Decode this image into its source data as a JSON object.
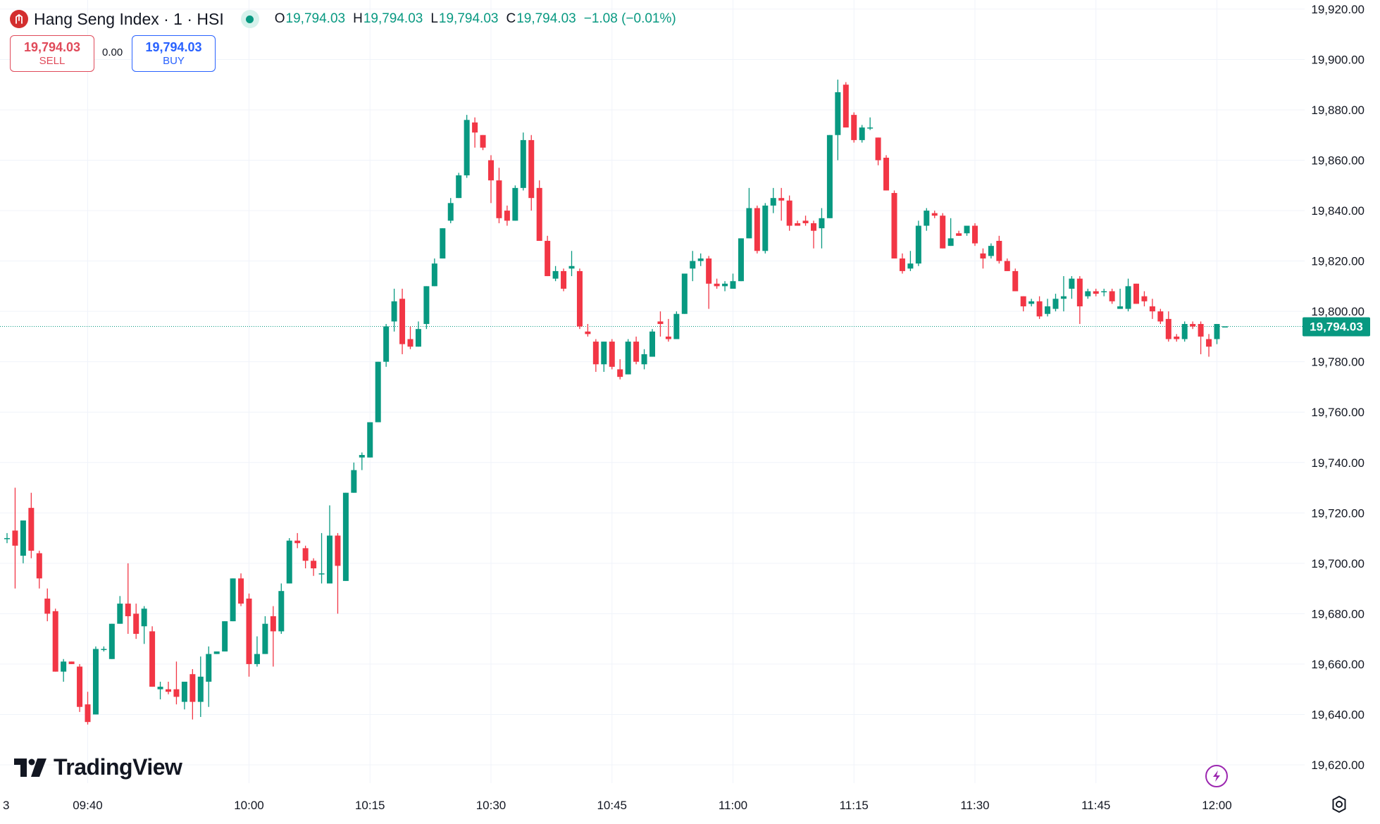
{
  "header": {
    "symbol_title": "Hang Seng Index · 1 · HSI",
    "ohlc": {
      "o_label": "O",
      "o_value": "19,794.03",
      "h_label": "H",
      "h_value": "19,794.03",
      "l_label": "L",
      "l_value": "19,794.03",
      "c_label": "C",
      "c_value": "19,794.03",
      "change": "−1.08 (−0.01%)"
    }
  },
  "trade": {
    "sell_price": "19,794.03",
    "sell_label": "SELL",
    "spread": "0.00",
    "buy_price": "19,794.03",
    "buy_label": "BUY"
  },
  "branding": {
    "logo_text": "TradingView"
  },
  "icons": {
    "symbol": "hsi-logo-icon",
    "live": "market-open-icon",
    "flash": "lightning-icon",
    "settings": "settings-icon"
  },
  "colors": {
    "up": "#089981",
    "down": "#f23645",
    "grid": "#f0f3fa",
    "last_price": "#089981"
  },
  "chart_data": {
    "type": "candlestick",
    "interval": "1 minute",
    "y_ticks": [
      19620,
      19640,
      19660,
      19680,
      19700,
      19720,
      19740,
      19760,
      19780,
      19800,
      19820,
      19840,
      19860,
      19880,
      19900,
      19920
    ],
    "y_tick_labels": [
      "19,620.00",
      "19,640.00",
      "19,660.00",
      "19,680.00",
      "19,700.00",
      "19,720.00",
      "19,740.00",
      "19,760.00",
      "19,780.00",
      "19,800.00",
      "19,820.00",
      "19,840.00",
      "19,860.00",
      "19,880.00",
      "19,900.00",
      "19,920.00"
    ],
    "x_tick_labels": [
      {
        "label": "3",
        "minute": -7
      },
      {
        "label": "09:40",
        "minute": 10
      },
      {
        "label": "10:00",
        "minute": 30
      },
      {
        "label": "10:15",
        "minute": 45
      },
      {
        "label": "10:30",
        "minute": 60
      },
      {
        "label": "10:45",
        "minute": 75
      },
      {
        "label": "11:00",
        "minute": 90
      },
      {
        "label": "11:15",
        "minute": 105
      },
      {
        "label": "11:30",
        "minute": 120
      },
      {
        "label": "11:45",
        "minute": 135
      },
      {
        "label": "12:00",
        "minute": 150
      }
    ],
    "last_price": 19794.03,
    "last_price_label": "19,794.03",
    "candles": [
      {
        "o": 19710,
        "h": 19712,
        "l": 19708,
        "c": 19710
      },
      {
        "o": 19713,
        "h": 19730,
        "l": 19690,
        "c": 19707
      },
      {
        "o": 19703,
        "h": 19717,
        "l": 19700,
        "c": 19717
      },
      {
        "o": 19722,
        "h": 19728,
        "l": 19702,
        "c": 19705
      },
      {
        "o": 19704,
        "h": 19705,
        "l": 19690,
        "c": 19694
      },
      {
        "o": 19686,
        "h": 19690,
        "l": 19677,
        "c": 19680
      },
      {
        "o": 19681,
        "h": 19682,
        "l": 19657,
        "c": 19657
      },
      {
        "o": 19657,
        "h": 19662,
        "l": 19653,
        "c": 19661
      },
      {
        "o": 19661,
        "h": 19661,
        "l": 19660,
        "c": 19660
      },
      {
        "o": 19659,
        "h": 19660,
        "l": 19641,
        "c": 19643
      },
      {
        "o": 19644,
        "h": 19649,
        "l": 19636,
        "c": 19637
      },
      {
        "o": 19640,
        "h": 19667,
        "l": 19640,
        "c": 19666
      },
      {
        "o": 19666,
        "h": 19667,
        "l": 19665,
        "c": 19666
      },
      {
        "o": 19662,
        "h": 19676,
        "l": 19662,
        "c": 19676
      },
      {
        "o": 19676,
        "h": 19687,
        "l": 19676,
        "c": 19684
      },
      {
        "o": 19684,
        "h": 19700,
        "l": 19672,
        "c": 19679
      },
      {
        "o": 19680,
        "h": 19684,
        "l": 19670,
        "c": 19672
      },
      {
        "o": 19675,
        "h": 19683,
        "l": 19668,
        "c": 19682
      },
      {
        "o": 19673,
        "h": 19675,
        "l": 19651,
        "c": 19651
      },
      {
        "o": 19650,
        "h": 19653,
        "l": 19646,
        "c": 19651
      },
      {
        "o": 19650,
        "h": 19653,
        "l": 19648,
        "c": 19649
      },
      {
        "o": 19650,
        "h": 19661,
        "l": 19644,
        "c": 19647
      },
      {
        "o": 19645,
        "h": 19652,
        "l": 19642,
        "c": 19653
      },
      {
        "o": 19656,
        "h": 19658,
        "l": 19638,
        "c": 19645
      },
      {
        "o": 19645,
        "h": 19663,
        "l": 19639,
        "c": 19655
      },
      {
        "o": 19653,
        "h": 19667,
        "l": 19643,
        "c": 19664
      },
      {
        "o": 19664,
        "h": 19665,
        "l": 19664,
        "c": 19665
      },
      {
        "o": 19665,
        "h": 19677,
        "l": 19665,
        "c": 19677
      },
      {
        "o": 19677,
        "h": 19694,
        "l": 19677,
        "c": 19694
      },
      {
        "o": 19694,
        "h": 19696,
        "l": 19683,
        "c": 19684
      },
      {
        "o": 19686,
        "h": 19688,
        "l": 19655,
        "c": 19660
      },
      {
        "o": 19660,
        "h": 19671,
        "l": 19659,
        "c": 19664
      },
      {
        "o": 19664,
        "h": 19679,
        "l": 19664,
        "c": 19676
      },
      {
        "o": 19679,
        "h": 19683,
        "l": 19659,
        "c": 19673
      },
      {
        "o": 19673,
        "h": 19692,
        "l": 19672,
        "c": 19689
      },
      {
        "o": 19692,
        "h": 19710,
        "l": 19692,
        "c": 19709
      },
      {
        "o": 19709,
        "h": 19712,
        "l": 19706,
        "c": 19708
      },
      {
        "o": 19706,
        "h": 19707,
        "l": 19698,
        "c": 19701
      },
      {
        "o": 19701,
        "h": 19702,
        "l": 19695,
        "c": 19698
      },
      {
        "o": 19696,
        "h": 19712,
        "l": 19692,
        "c": 19696
      },
      {
        "o": 19692,
        "h": 19723,
        "l": 19692,
        "c": 19711
      },
      {
        "o": 19711,
        "h": 19712,
        "l": 19680,
        "c": 19699
      },
      {
        "o": 19693,
        "h": 19728,
        "l": 19693,
        "c": 19728
      },
      {
        "o": 19728,
        "h": 19740,
        "l": 19728,
        "c": 19737
      },
      {
        "o": 19742,
        "h": 19744,
        "l": 19737,
        "c": 19743
      },
      {
        "o": 19742,
        "h": 19756,
        "l": 19742,
        "c": 19756
      },
      {
        "o": 19756,
        "h": 19780,
        "l": 19756,
        "c": 19780
      },
      {
        "o": 19780,
        "h": 19795,
        "l": 19778,
        "c": 19794
      },
      {
        "o": 19796,
        "h": 19809,
        "l": 19792,
        "c": 19804
      },
      {
        "o": 19805,
        "h": 19809,
        "l": 19783,
        "c": 19787
      },
      {
        "o": 19789,
        "h": 19794,
        "l": 19785,
        "c": 19786
      },
      {
        "o": 19786,
        "h": 19796,
        "l": 19786,
        "c": 19793
      },
      {
        "o": 19795,
        "h": 19810,
        "l": 19793,
        "c": 19810
      },
      {
        "o": 19810,
        "h": 19821,
        "l": 19810,
        "c": 19819
      },
      {
        "o": 19821,
        "h": 19833,
        "l": 19821,
        "c": 19833
      },
      {
        "o": 19836,
        "h": 19845,
        "l": 19835,
        "c": 19843
      },
      {
        "o": 19845,
        "h": 19855,
        "l": 19845,
        "c": 19854
      },
      {
        "o": 19854,
        "h": 19878,
        "l": 19853,
        "c": 19876
      },
      {
        "o": 19875,
        "h": 19877,
        "l": 19865,
        "c": 19871
      },
      {
        "o": 19870,
        "h": 19870,
        "l": 19864,
        "c": 19865
      },
      {
        "o": 19860,
        "h": 19862,
        "l": 19843,
        "c": 19852
      },
      {
        "o": 19852,
        "h": 19857,
        "l": 19835,
        "c": 19837
      },
      {
        "o": 19840,
        "h": 19842,
        "l": 19834,
        "c": 19836
      },
      {
        "o": 19836,
        "h": 19850,
        "l": 19836,
        "c": 19849
      },
      {
        "o": 19849,
        "h": 19871,
        "l": 19848,
        "c": 19868
      },
      {
        "o": 19868,
        "h": 19870,
        "l": 19840,
        "c": 19845
      },
      {
        "o": 19849,
        "h": 19852,
        "l": 19828,
        "c": 19828
      },
      {
        "o": 19828,
        "h": 19830,
        "l": 19814,
        "c": 19814
      },
      {
        "o": 19813,
        "h": 19818,
        "l": 19812,
        "c": 19816
      },
      {
        "o": 19816,
        "h": 19817,
        "l": 19808,
        "c": 19809
      },
      {
        "o": 19817,
        "h": 19824,
        "l": 19814,
        "c": 19818
      },
      {
        "o": 19816,
        "h": 19817,
        "l": 19793,
        "c": 19794
      },
      {
        "o": 19792,
        "h": 19795,
        "l": 19790,
        "c": 19791
      },
      {
        "o": 19788,
        "h": 19789,
        "l": 19776,
        "c": 19779
      },
      {
        "o": 19779,
        "h": 19788,
        "l": 19776,
        "c": 19788
      },
      {
        "o": 19788,
        "h": 19789,
        "l": 19777,
        "c": 19778
      },
      {
        "o": 19777,
        "h": 19781,
        "l": 19773,
        "c": 19774
      },
      {
        "o": 19775,
        "h": 19789,
        "l": 19775,
        "c": 19788
      },
      {
        "o": 19788,
        "h": 19790,
        "l": 19779,
        "c": 19780
      },
      {
        "o": 19779,
        "h": 19785,
        "l": 19777,
        "c": 19783
      },
      {
        "o": 19782,
        "h": 19793,
        "l": 19782,
        "c": 19792
      },
      {
        "o": 19796,
        "h": 19800,
        "l": 19790,
        "c": 19795
      },
      {
        "o": 19790,
        "h": 19797,
        "l": 19788,
        "c": 19789
      },
      {
        "o": 19789,
        "h": 19800,
        "l": 19789,
        "c": 19799
      },
      {
        "o": 19799,
        "h": 19814,
        "l": 19799,
        "c": 19815
      },
      {
        "o": 19817,
        "h": 19824,
        "l": 19812,
        "c": 19820
      },
      {
        "o": 19820,
        "h": 19823,
        "l": 19818,
        "c": 19821
      },
      {
        "o": 19821,
        "h": 19822,
        "l": 19801,
        "c": 19811
      },
      {
        "o": 19811,
        "h": 19813,
        "l": 19809,
        "c": 19810
      },
      {
        "o": 19810,
        "h": 19812,
        "l": 19808,
        "c": 19811
      },
      {
        "o": 19809,
        "h": 19815,
        "l": 19809,
        "c": 19812
      },
      {
        "o": 19812,
        "h": 19829,
        "l": 19812,
        "c": 19829
      },
      {
        "o": 19829,
        "h": 19849,
        "l": 19829,
        "c": 19841
      },
      {
        "o": 19841,
        "h": 19842,
        "l": 19823,
        "c": 19824
      },
      {
        "o": 19824,
        "h": 19843,
        "l": 19823,
        "c": 19842
      },
      {
        "o": 19842,
        "h": 19849,
        "l": 19839,
        "c": 19845
      },
      {
        "o": 19845,
        "h": 19849,
        "l": 19836,
        "c": 19844
      },
      {
        "o": 19844,
        "h": 19846,
        "l": 19832,
        "c": 19834
      },
      {
        "o": 19835,
        "h": 19836,
        "l": 19834,
        "c": 19834
      },
      {
        "o": 19836,
        "h": 19838,
        "l": 19834,
        "c": 19835
      },
      {
        "o": 19835,
        "h": 19836,
        "l": 19825,
        "c": 19832
      },
      {
        "o": 19833,
        "h": 19841,
        "l": 19825,
        "c": 19837
      },
      {
        "o": 19837,
        "h": 19870,
        "l": 19837,
        "c": 19870
      },
      {
        "o": 19870,
        "h": 19892,
        "l": 19860,
        "c": 19887
      },
      {
        "o": 19890,
        "h": 19891,
        "l": 19873,
        "c": 19873
      },
      {
        "o": 19878,
        "h": 19879,
        "l": 19867,
        "c": 19868
      },
      {
        "o": 19868,
        "h": 19874,
        "l": 19867,
        "c": 19873
      },
      {
        "o": 19873,
        "h": 19877,
        "l": 19872,
        "c": 19873
      },
      {
        "o": 19869,
        "h": 19869,
        "l": 19858,
        "c": 19860
      },
      {
        "o": 19861,
        "h": 19862,
        "l": 19848,
        "c": 19848
      },
      {
        "o": 19847,
        "h": 19848,
        "l": 19821,
        "c": 19821
      },
      {
        "o": 19821,
        "h": 19823,
        "l": 19815,
        "c": 19816
      },
      {
        "o": 19817,
        "h": 19824,
        "l": 19816,
        "c": 19819
      },
      {
        "o": 19819,
        "h": 19836,
        "l": 19818,
        "c": 19834
      },
      {
        "o": 19834,
        "h": 19841,
        "l": 19832,
        "c": 19840
      },
      {
        "o": 19839,
        "h": 19840,
        "l": 19837,
        "c": 19838
      },
      {
        "o": 19838,
        "h": 19839,
        "l": 19825,
        "c": 19825
      },
      {
        "o": 19826,
        "h": 19837,
        "l": 19826,
        "c": 19829
      },
      {
        "o": 19831,
        "h": 19832,
        "l": 19830,
        "c": 19830
      },
      {
        "o": 19831,
        "h": 19834,
        "l": 19830,
        "c": 19834
      },
      {
        "o": 19834,
        "h": 19835,
        "l": 19826,
        "c": 19827
      },
      {
        "o": 19823,
        "h": 19825,
        "l": 19817,
        "c": 19821
      },
      {
        "o": 19822,
        "h": 19827,
        "l": 19821,
        "c": 19826
      },
      {
        "o": 19828,
        "h": 19830,
        "l": 19819,
        "c": 19820
      },
      {
        "o": 19820,
        "h": 19821,
        "l": 19816,
        "c": 19816
      },
      {
        "o": 19816,
        "h": 19817,
        "l": 19808,
        "c": 19808
      },
      {
        "o": 19806,
        "h": 19806,
        "l": 19800,
        "c": 19802
      },
      {
        "o": 19803,
        "h": 19805,
        "l": 19802,
        "c": 19804
      },
      {
        "o": 19804,
        "h": 19806,
        "l": 19797,
        "c": 19798
      },
      {
        "o": 19799,
        "h": 19805,
        "l": 19798,
        "c": 19802
      },
      {
        "o": 19801,
        "h": 19807,
        "l": 19800,
        "c": 19805
      },
      {
        "o": 19805,
        "h": 19814,
        "l": 19800,
        "c": 19806
      },
      {
        "o": 19809,
        "h": 19814,
        "l": 19805,
        "c": 19813
      },
      {
        "o": 19813,
        "h": 19814,
        "l": 19795,
        "c": 19802
      },
      {
        "o": 19806,
        "h": 19809,
        "l": 19805,
        "c": 19808
      },
      {
        "o": 19808,
        "h": 19809,
        "l": 19806,
        "c": 19807
      },
      {
        "o": 19808,
        "h": 19809,
        "l": 19806,
        "c": 19808
      },
      {
        "o": 19808,
        "h": 19809,
        "l": 19803,
        "c": 19804
      },
      {
        "o": 19801,
        "h": 19809,
        "l": 19801,
        "c": 19802
      },
      {
        "o": 19801,
        "h": 19813,
        "l": 19800,
        "c": 19810
      },
      {
        "o": 19811,
        "h": 19811,
        "l": 19803,
        "c": 19803
      },
      {
        "o": 19806,
        "h": 19808,
        "l": 19802,
        "c": 19804
      },
      {
        "o": 19802,
        "h": 19805,
        "l": 19797,
        "c": 19800
      },
      {
        "o": 19800,
        "h": 19801,
        "l": 19795,
        "c": 19796
      },
      {
        "o": 19797,
        "h": 19800,
        "l": 19788,
        "c": 19789
      },
      {
        "o": 19790,
        "h": 19791,
        "l": 19788,
        "c": 19789
      },
      {
        "o": 19789,
        "h": 19796,
        "l": 19788,
        "c": 19795
      },
      {
        "o": 19795,
        "h": 19796,
        "l": 19793,
        "c": 19794
      },
      {
        "o": 19795,
        "h": 19796,
        "l": 19783,
        "c": 19790
      },
      {
        "o": 19789,
        "h": 19791,
        "l": 19782,
        "c": 19786
      },
      {
        "o": 19789,
        "h": 19795,
        "l": 19787,
        "c": 19795
      },
      {
        "o": 19794.03,
        "h": 19794.03,
        "l": 19794.03,
        "c": 19794.03
      }
    ]
  }
}
